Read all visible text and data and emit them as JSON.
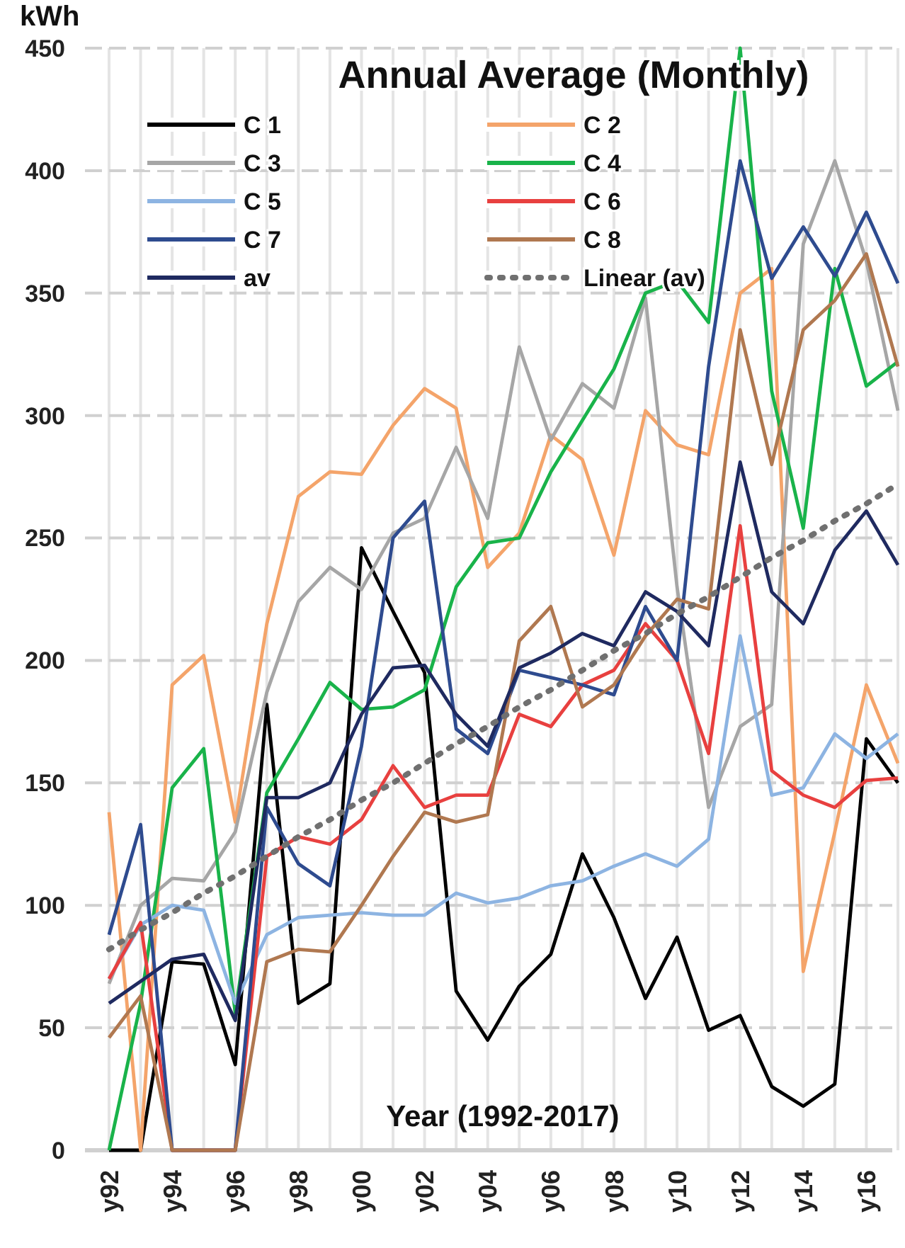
{
  "chart_data": {
    "type": "line",
    "title": "Annual Average (Monthly)",
    "ylabel": "kWh",
    "xlabel": "Year (1992-2017)",
    "categories": [
      "y92",
      null,
      "y94",
      null,
      "y96",
      null,
      "y98",
      null,
      "y00",
      null,
      "y02",
      null,
      "y04",
      null,
      "y06",
      null,
      "y08",
      null,
      "y10",
      null,
      "y12",
      null,
      "y14",
      null,
      "y16",
      null
    ],
    "ylim": [
      0,
      450
    ],
    "yticks": [
      0,
      50,
      100,
      150,
      200,
      250,
      300,
      350,
      400,
      450
    ],
    "grid": true,
    "legend": "top",
    "marker": "none",
    "series": [
      {
        "name": "C 1",
        "color": "#000000",
        "values": [
          0,
          0,
          77,
          76,
          35,
          182,
          60,
          68,
          246,
          220,
          195,
          65,
          45,
          67,
          80,
          121,
          95,
          62,
          87,
          49,
          55,
          26,
          18,
          27,
          168,
          150
        ]
      },
      {
        "name": "C 2",
        "color": "#f4a46a",
        "values": [
          138,
          0,
          190,
          202,
          134,
          215,
          267,
          277,
          276,
          296,
          311,
          303,
          238,
          252,
          292,
          282,
          243,
          302,
          288,
          284,
          350,
          360,
          73,
          130,
          190,
          158
        ]
      },
      {
        "name": "C 3",
        "color": "#a6a6a6",
        "values": [
          68,
          100,
          111,
          110,
          130,
          187,
          224,
          238,
          229,
          252,
          258,
          287,
          258,
          328,
          290,
          313,
          303,
          348,
          230,
          140,
          173,
          182,
          370,
          404,
          363,
          302
        ]
      },
      {
        "name": "C 4",
        "color": "#19b34a",
        "values": [
          0,
          60,
          148,
          164,
          56,
          146,
          168,
          191,
          180,
          181,
          188,
          230,
          248,
          250,
          277,
          298,
          319,
          350,
          355,
          338,
          450,
          310,
          254,
          360,
          312,
          322
        ]
      },
      {
        "name": "C 5",
        "color": "#8db4e2",
        "values": [
          70,
          92,
          100,
          98,
          60,
          88,
          95,
          96,
          97,
          96,
          96,
          105,
          101,
          103,
          108,
          110,
          116,
          121,
          116,
          127,
          210,
          145,
          148,
          170,
          160,
          170
        ]
      },
      {
        "name": "C 6",
        "color": "#e8403f",
        "values": [
          70,
          93,
          0,
          0,
          0,
          120,
          128,
          125,
          135,
          157,
          140,
          145,
          145,
          178,
          173,
          190,
          196,
          215,
          200,
          162,
          255,
          155,
          145,
          140,
          151,
          152
        ]
      },
      {
        "name": "C 7",
        "color": "#2e4b8f",
        "values": [
          88,
          133,
          0,
          0,
          0,
          140,
          117,
          108,
          165,
          250,
          265,
          172,
          162,
          196,
          193,
          190,
          186,
          222,
          200,
          320,
          404,
          356,
          377,
          357,
          383,
          354
        ]
      },
      {
        "name": "C 8",
        "color": "#b07850",
        "values": [
          46,
          63,
          0,
          0,
          0,
          77,
          82,
          81,
          100,
          120,
          138,
          134,
          137,
          208,
          222,
          181,
          190,
          210,
          225,
          221,
          335,
          280,
          335,
          347,
          366,
          320
        ]
      },
      {
        "name": "av",
        "color": "#1f2a60",
        "values": [
          60,
          69,
          78,
          80,
          53,
          144,
          144,
          150,
          178,
          197,
          198,
          178,
          165,
          197,
          203,
          211,
          206,
          228,
          220,
          206,
          281,
          228,
          215,
          245,
          261,
          239
        ]
      },
      {
        "name": "Linear (av)",
        "color": "#707070",
        "line_style": "dotted",
        "values": [
          82,
          90,
          97,
          105,
          112,
          120,
          128,
          135,
          143,
          150,
          158,
          166,
          173,
          181,
          188,
          196,
          204,
          211,
          219,
          226,
          234,
          242,
          249,
          257,
          264,
          272
        ]
      }
    ]
  }
}
